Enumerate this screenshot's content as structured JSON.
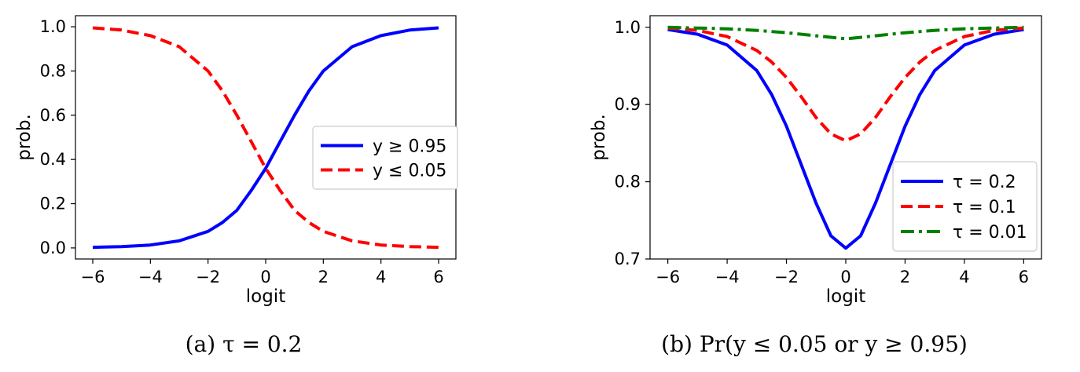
{
  "chart_data": [
    {
      "type": "line",
      "caption": "(a) τ = 0.2",
      "xlabel": "logit",
      "ylabel": "prob.",
      "xlim": [
        -6.6,
        6.6
      ],
      "ylim": [
        -0.05,
        1.05
      ],
      "xticks": [
        -6,
        -4,
        -2,
        0,
        2,
        4,
        6
      ],
      "xtick_labels": [
        "−6",
        "−4",
        "−2",
        "0",
        "2",
        "4",
        "6"
      ],
      "yticks": [
        0.0,
        0.2,
        0.4,
        0.6,
        0.8,
        1.0
      ],
      "ytick_labels": [
        "0.0",
        "0.2",
        "0.4",
        "0.6",
        "0.8",
        "1.0"
      ],
      "grid": false,
      "legend_position": "center-right",
      "series": [
        {
          "name": "y ≥ 0.95",
          "color": "#0000ff",
          "style": "solid",
          "x": [
            -6,
            -5,
            -4,
            -3,
            -2,
            -1.5,
            -1,
            -0.5,
            0,
            0.5,
            1,
            1.5,
            2,
            3,
            4,
            5,
            6
          ],
          "y": [
            0.003,
            0.006,
            0.013,
            0.032,
            0.075,
            0.115,
            0.17,
            0.26,
            0.36,
            0.48,
            0.6,
            0.71,
            0.8,
            0.91,
            0.96,
            0.985,
            0.995
          ]
        },
        {
          "name": "y ≤ 0.05",
          "color": "#ff0000",
          "style": "dashed",
          "x": [
            -6,
            -5,
            -4,
            -3,
            -2,
            -1.5,
            -1,
            -0.5,
            0,
            0.5,
            1,
            1.5,
            2,
            3,
            4,
            5,
            6
          ],
          "y": [
            0.995,
            0.985,
            0.96,
            0.91,
            0.8,
            0.71,
            0.6,
            0.48,
            0.36,
            0.26,
            0.17,
            0.115,
            0.075,
            0.032,
            0.013,
            0.006,
            0.003
          ]
        }
      ]
    },
    {
      "type": "line",
      "caption": "(b) Pr(y ≤ 0.05 or y ≥ 0.95)",
      "xlabel": "logit",
      "ylabel": "prob.",
      "xlim": [
        -6.6,
        6.6
      ],
      "ylim": [
        0.7,
        1.015
      ],
      "xticks": [
        -6,
        -4,
        -2,
        0,
        2,
        4,
        6
      ],
      "xtick_labels": [
        "−6",
        "−4",
        "−2",
        "0",
        "2",
        "4",
        "6"
      ],
      "yticks": [
        0.7,
        0.8,
        0.9,
        1.0
      ],
      "ytick_labels": [
        "0.7",
        "0.8",
        "0.9",
        "1.0"
      ],
      "grid": false,
      "legend_position": "lower-right",
      "series": [
        {
          "name": "τ = 0.2",
          "color": "#0000ff",
          "style": "solid",
          "x": [
            -6,
            -5,
            -4,
            -3,
            -2.5,
            -2,
            -1.5,
            -1,
            -0.5,
            0,
            0.5,
            1,
            1.5,
            2,
            2.5,
            3,
            4,
            5,
            6
          ],
          "y": [
            0.997,
            0.991,
            0.977,
            0.944,
            0.913,
            0.872,
            0.822,
            0.772,
            0.73,
            0.714,
            0.73,
            0.772,
            0.822,
            0.872,
            0.913,
            0.944,
            0.977,
            0.991,
            0.997
          ]
        },
        {
          "name": "τ = 0.1",
          "color": "#ff0000",
          "style": "dashed",
          "x": [
            -6,
            -5,
            -4,
            -3,
            -2.5,
            -2,
            -1.5,
            -1,
            -0.5,
            0,
            0.5,
            1,
            1.5,
            2,
            2.5,
            3,
            4,
            5,
            6
          ],
          "y": [
            0.999,
            0.996,
            0.988,
            0.97,
            0.955,
            0.935,
            0.91,
            0.883,
            0.862,
            0.853,
            0.862,
            0.883,
            0.91,
            0.935,
            0.955,
            0.97,
            0.988,
            0.996,
            0.999
          ]
        },
        {
          "name": "τ = 0.01",
          "color": "#008000",
          "style": "dashdot",
          "x": [
            -6,
            -5,
            -4,
            -3,
            -2,
            -1,
            0,
            1,
            2,
            3,
            4,
            5,
            6
          ],
          "y": [
            1.0,
            0.999,
            0.998,
            0.996,
            0.993,
            0.989,
            0.985,
            0.989,
            0.993,
            0.996,
            0.998,
            0.999,
            1.0
          ]
        }
      ]
    }
  ]
}
